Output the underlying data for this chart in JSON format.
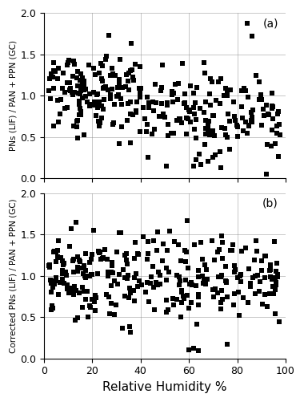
{
  "title_a": "(a)",
  "title_b": "(b)",
  "xlabel": "Relative Humidity %",
  "ylabel_a": "PNs (LIF) / PAN + PPN (GC)",
  "ylabel_b": "Corrected PNs (LIF) / PAN + PPN (GC)",
  "xlim": [
    0,
    100
  ],
  "ylim_a": [
    0.0,
    2.0
  ],
  "ylim_b": [
    0.0,
    2.0
  ],
  "xticks": [
    0,
    20,
    40,
    60,
    80,
    100
  ],
  "yticks_a": [
    0.0,
    0.5,
    1.0,
    1.5,
    2.0
  ],
  "yticks_b": [
    0.0,
    0.5,
    1.0,
    1.5,
    2.0
  ],
  "marker": "s",
  "marker_size": 16,
  "marker_color": "black",
  "background_color": "white",
  "figsize": [
    3.8,
    5.01
  ],
  "dpi": 100
}
